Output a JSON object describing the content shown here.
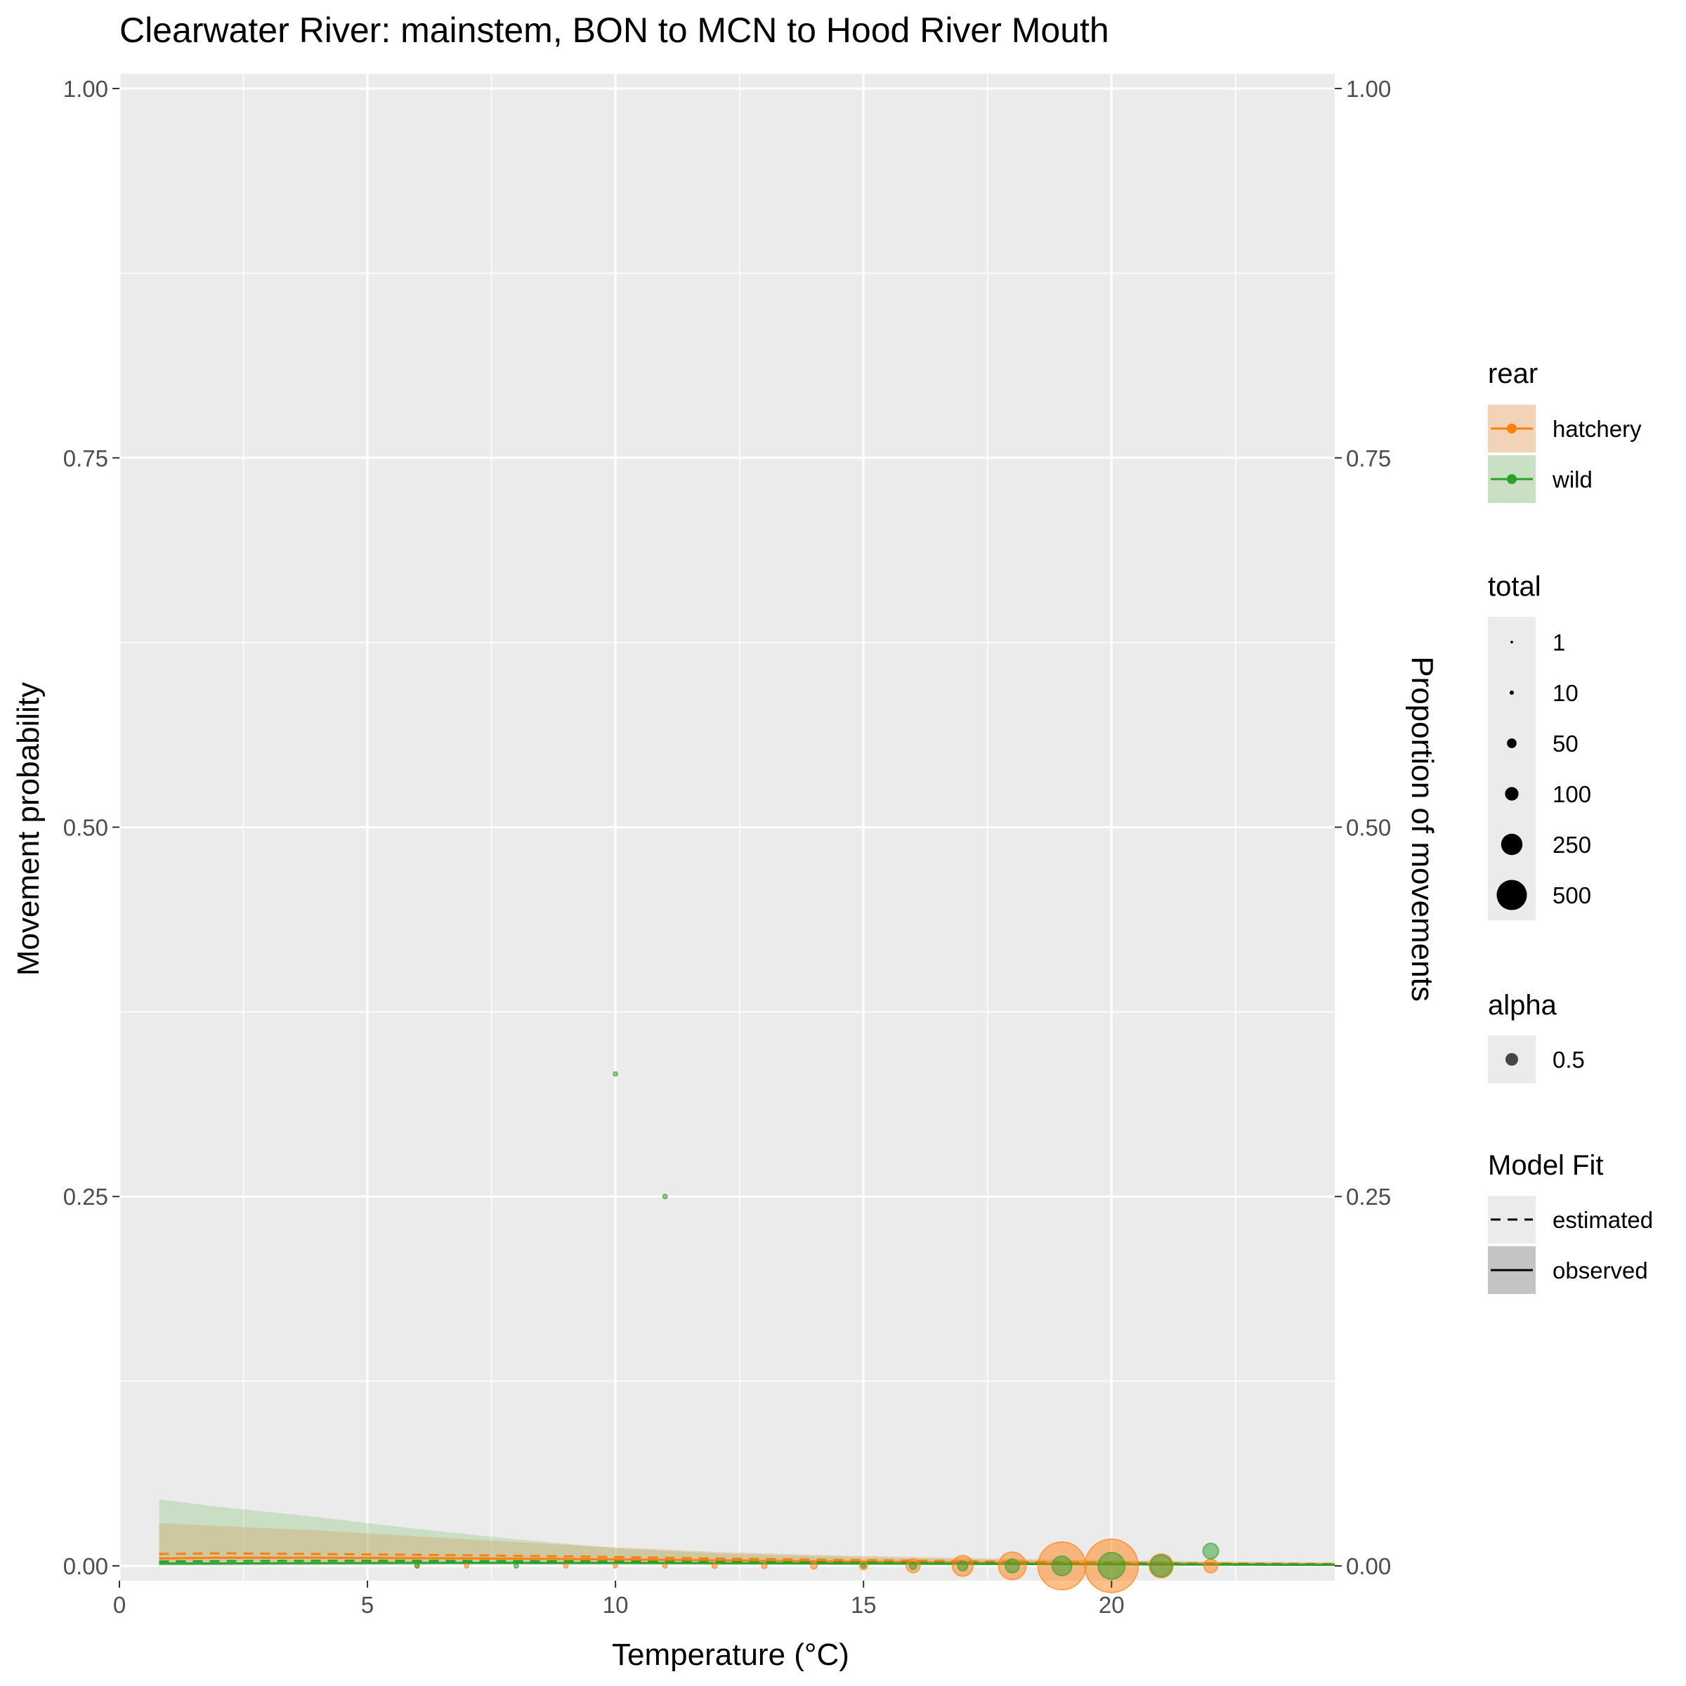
{
  "chart_data": {
    "type": "scatter",
    "title": "Clearwater River: mainstem, BON to MCN to Hood River Mouth",
    "xlabel": "Temperature (°C)",
    "ylabel": "Movement probability",
    "y2label": "Proportion of movements",
    "xlim": [
      0,
      24.5
    ],
    "ylim": [
      -0.01,
      1.01
    ],
    "x_ticks": [
      0,
      5,
      10,
      15,
      20
    ],
    "y_ticks": [
      0,
      0.25,
      0.5,
      0.75,
      1
    ],
    "x_tick_labels": [
      "0",
      "5",
      "10",
      "15",
      "20"
    ],
    "y_tick_labels": [
      "0.00",
      "0.25",
      "0.50",
      "0.75",
      "1.00"
    ],
    "grid": true,
    "legend_position": "right",
    "colors": {
      "hatchery": "#ff7f0e",
      "wild": "#2ca02c",
      "panel": "#ebebeb",
      "grid": "#ffffff"
    },
    "series": [
      {
        "name": "hatchery",
        "points": [
          {
            "x": 6,
            "y": 0,
            "total": 1
          },
          {
            "x": 7,
            "y": 0,
            "total": 1
          },
          {
            "x": 9,
            "y": 0,
            "total": 2
          },
          {
            "x": 10,
            "y": 0,
            "total": 3
          },
          {
            "x": 11,
            "y": 0,
            "total": 4
          },
          {
            "x": 12,
            "y": 0,
            "total": 5
          },
          {
            "x": 13,
            "y": 0,
            "total": 6
          },
          {
            "x": 14,
            "y": 0,
            "total": 8
          },
          {
            "x": 15,
            "y": 0,
            "total": 12
          },
          {
            "x": 16,
            "y": 0,
            "total": 40
          },
          {
            "x": 17,
            "y": 0,
            "total": 90
          },
          {
            "x": 18,
            "y": 0,
            "total": 160
          },
          {
            "x": 19,
            "y": 0,
            "total": 480
          },
          {
            "x": 20,
            "y": 0,
            "total": 600
          },
          {
            "x": 21,
            "y": 0,
            "total": 120
          },
          {
            "x": 22,
            "y": 0,
            "total": 40
          }
        ],
        "fit_estimated": {
          "x": [
            0.8,
            2,
            4,
            6,
            8,
            10,
            12,
            14,
            16,
            18,
            20,
            22,
            24.5
          ],
          "y": [
            0.008,
            0.0085,
            0.008,
            0.0075,
            0.0068,
            0.006,
            0.005,
            0.0042,
            0.0035,
            0.0028,
            0.0022,
            0.0017,
            0.0012
          ]
        },
        "fit_ci": {
          "x": [
            0.8,
            2,
            4,
            6,
            8,
            10,
            12,
            14,
            16,
            18,
            20,
            22,
            24.5
          ],
          "lower": [
            0.002,
            0.0025,
            0.003,
            0.003,
            0.003,
            0.0028,
            0.0025,
            0.002,
            0.0016,
            0.0012,
            0.001,
            0.0008,
            0.0005
          ],
          "upper": [
            0.029,
            0.027,
            0.024,
            0.02,
            0.016,
            0.0125,
            0.0095,
            0.0075,
            0.006,
            0.0048,
            0.0038,
            0.003,
            0.0022
          ]
        }
      },
      {
        "name": "wild",
        "points": [
          {
            "x": 6,
            "y": 0,
            "total": 1
          },
          {
            "x": 8,
            "y": 0,
            "total": 1
          },
          {
            "x": 10,
            "y": 0.333,
            "total": 3
          },
          {
            "x": 11,
            "y": 0.25,
            "total": 4
          },
          {
            "x": 15,
            "y": 0,
            "total": 3
          },
          {
            "x": 16,
            "y": 0,
            "total": 10
          },
          {
            "x": 17,
            "y": 0,
            "total": 20
          },
          {
            "x": 18,
            "y": 0,
            "total": 40
          },
          {
            "x": 19,
            "y": 0,
            "total": 80
          },
          {
            "x": 20,
            "y": 0,
            "total": 150
          },
          {
            "x": 21,
            "y": 0,
            "total": 100
          },
          {
            "x": 22,
            "y": 0.01,
            "total": 50
          }
        ],
        "fit_estimated": {
          "x": [
            0.8,
            2,
            4,
            6,
            8,
            10,
            12,
            14,
            16,
            18,
            20,
            22,
            24.5
          ],
          "y": [
            0.003,
            0.0032,
            0.0034,
            0.0034,
            0.0032,
            0.003,
            0.0027,
            0.0024,
            0.0021,
            0.0018,
            0.0015,
            0.0012,
            0.001
          ]
        },
        "fit_ci": {
          "x": [
            0.8,
            2,
            4,
            6,
            8,
            10,
            12,
            14,
            16,
            18,
            20,
            22,
            24.5
          ],
          "lower": [
            0.0,
            0.0,
            0.0003,
            0.0006,
            0.0008,
            0.0009,
            0.0009,
            0.0008,
            0.0007,
            0.0006,
            0.0005,
            0.0004,
            0.0003
          ],
          "upper": [
            0.045,
            0.04,
            0.033,
            0.025,
            0.018,
            0.012,
            0.0085,
            0.0065,
            0.005,
            0.004,
            0.0033,
            0.0028,
            0.0022
          ]
        }
      }
    ],
    "legend": {
      "rear": {
        "title": "rear",
        "items": [
          "hatchery",
          "wild"
        ]
      },
      "total": {
        "title": "total",
        "items": [
          "1",
          "10",
          "50",
          "100",
          "250",
          "500"
        ],
        "values": [
          1,
          10,
          50,
          100,
          250,
          500
        ]
      },
      "alpha": {
        "title": "alpha",
        "items": [
          "0.5"
        ]
      },
      "model_fit": {
        "title": "Model Fit",
        "items": [
          "estimated",
          "observed"
        ]
      }
    }
  }
}
